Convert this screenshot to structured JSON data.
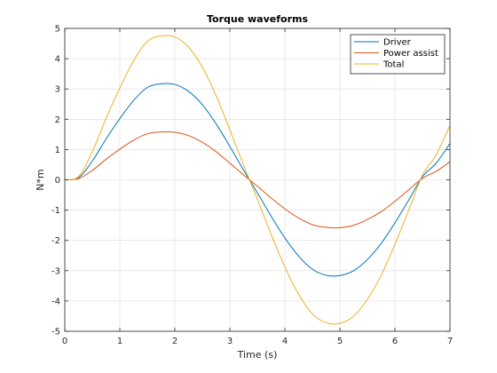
{
  "chart_data": {
    "type": "line",
    "title": "Torque waveforms",
    "xlabel": "Time (s)",
    "ylabel": "N*m",
    "xlim": [
      0,
      7
    ],
    "ylim": [
      -5,
      5
    ],
    "xticks": [
      "0",
      "1",
      "2",
      "3",
      "4",
      "5",
      "6",
      "7"
    ],
    "yticks": [
      "-5",
      "-4",
      "-3",
      "-2",
      "-1",
      "0",
      "1",
      "2",
      "3",
      "4",
      "5"
    ],
    "grid": true,
    "legend_position": "top-right",
    "x": [
      0,
      0.25,
      0.5,
      0.75,
      1,
      1.25,
      1.5,
      1.75,
      2,
      2.25,
      2.5,
      2.75,
      3,
      3.25,
      3.5,
      3.75,
      4,
      4.25,
      4.5,
      4.75,
      5,
      5.25,
      5.5,
      5.75,
      6,
      6.25,
      6.5,
      6.75,
      7
    ],
    "series": [
      {
        "name": "Driver",
        "color": "#0072bd",
        "values": [
          0,
          0.07,
          0.62,
          1.35,
          2.02,
          2.62,
          3.05,
          3.17,
          3.15,
          2.92,
          2.48,
          1.85,
          1.1,
          0.32,
          -0.43,
          -1.2,
          -1.92,
          -2.52,
          -2.95,
          -3.15,
          -3.16,
          -3.0,
          -2.63,
          -2.1,
          -1.42,
          -0.67,
          0.1,
          0.55,
          1.2
        ]
      },
      {
        "name": "Power assist",
        "color": "#d95319",
        "values": [
          0,
          0.04,
          0.31,
          0.68,
          1.01,
          1.31,
          1.52,
          1.58,
          1.57,
          1.46,
          1.24,
          0.93,
          0.55,
          0.16,
          -0.21,
          -0.6,
          -0.96,
          -1.26,
          -1.48,
          -1.57,
          -1.58,
          -1.5,
          -1.31,
          -1.05,
          -0.71,
          -0.33,
          0.05,
          0.28,
          0.6
        ]
      },
      {
        "name": "Total",
        "color": "#edb120",
        "values": [
          0,
          0.11,
          0.93,
          2.03,
          3.03,
          3.93,
          4.57,
          4.75,
          4.72,
          4.38,
          3.72,
          2.78,
          1.65,
          0.48,
          -0.64,
          -1.8,
          -2.88,
          -3.78,
          -4.43,
          -4.72,
          -4.74,
          -4.5,
          -3.94,
          -3.15,
          -2.13,
          -1.0,
          0.15,
          0.83,
          1.8
        ]
      }
    ]
  }
}
